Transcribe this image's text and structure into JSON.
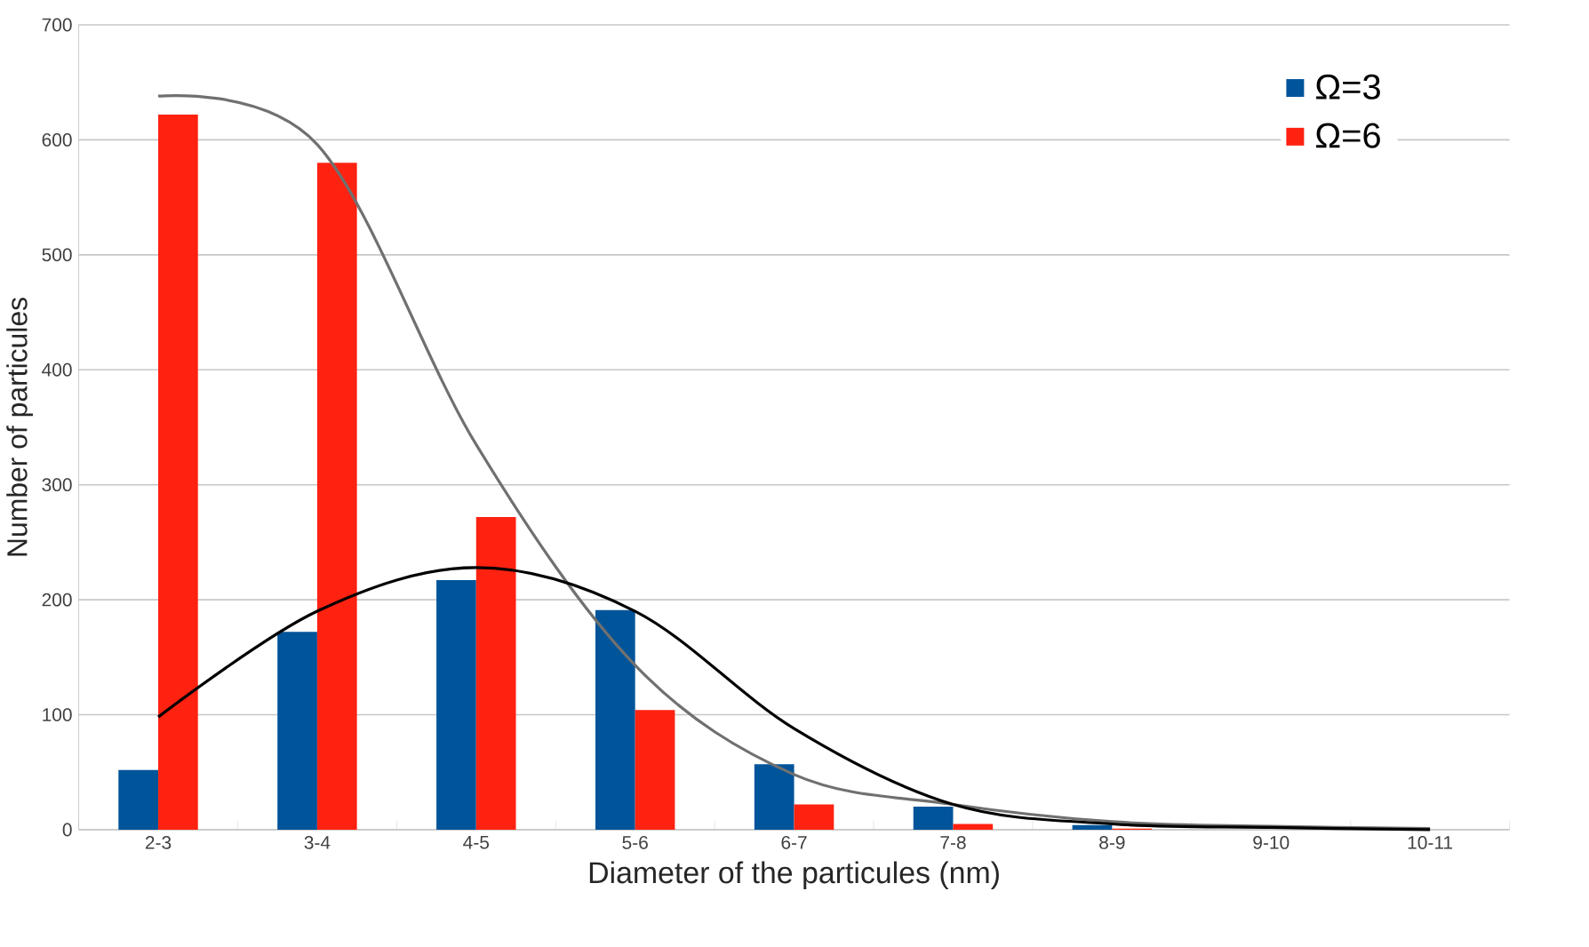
{
  "chart_data": {
    "type": "bar",
    "xlabel": "Diameter of the particules (nm)",
    "ylabel": "Number of particules",
    "categories": [
      "2-3",
      "3-4",
      "4-5",
      "5-6",
      "6-7",
      "7-8",
      "8-9",
      "9-10",
      "10-11"
    ],
    "series": [
      {
        "name": "Ω=3",
        "color": "#00549a",
        "values": [
          52,
          172,
          217,
          191,
          57,
          20,
          4,
          0,
          0
        ]
      },
      {
        "name": "Ω=6",
        "color": "#ff2211",
        "values": [
          622,
          580,
          272,
          104,
          22,
          5,
          1,
          0,
          0
        ]
      },
      {
        "type": "line",
        "color": "#707070",
        "values": [
          638,
          596,
          335,
          143,
          48,
          22,
          7,
          3,
          1
        ]
      },
      {
        "type": "line",
        "color": "#000000",
        "values": [
          98,
          190,
          228,
          190,
          88,
          22,
          5,
          2,
          0
        ]
      }
    ],
    "ylim": [
      0,
      700
    ],
    "yticks": [
      0,
      100,
      200,
      300,
      400,
      500,
      600,
      700
    ],
    "grid": "y",
    "legend": "top right",
    "marker": "none"
  }
}
